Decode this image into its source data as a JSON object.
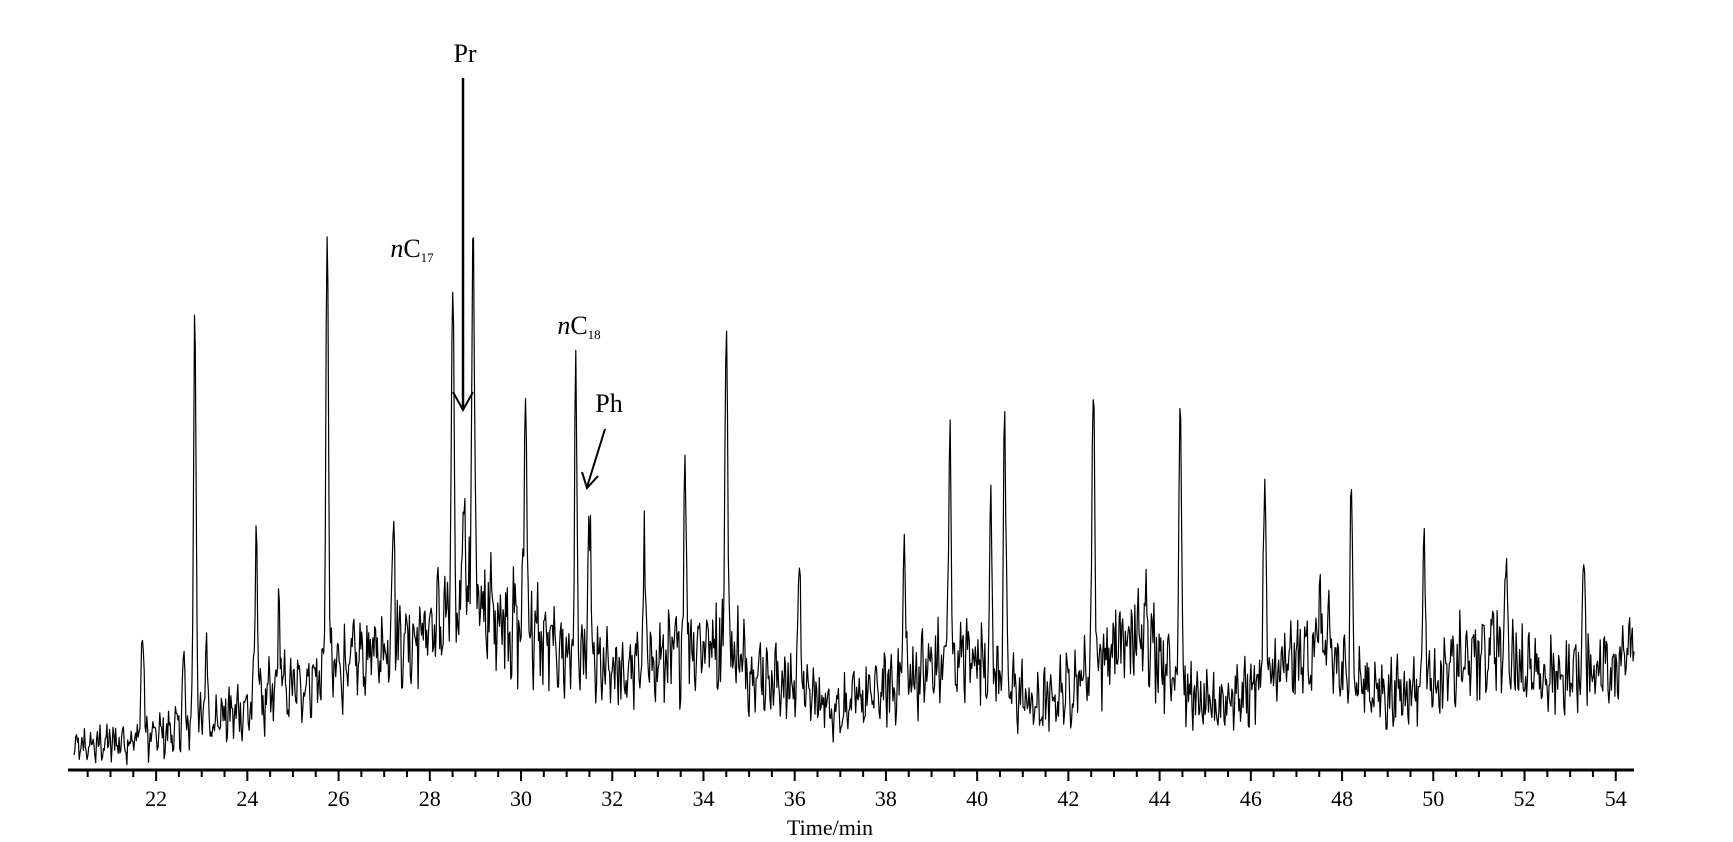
{
  "chart_data": {
    "type": "line",
    "xlabel": "Time/min",
    "xlim": [
      20.2,
      54.4
    ],
    "ylim": [
      0,
      100
    ],
    "x_ticks": [
      22,
      24,
      26,
      28,
      30,
      32,
      34,
      36,
      38,
      40,
      42,
      44,
      46,
      48,
      50,
      52,
      54
    ],
    "minor_tick_step": 0.5,
    "grid": false,
    "legend": "none",
    "line_color": "#000000",
    "baseline": [
      [
        20.2,
        3
      ],
      [
        21.0,
        4
      ],
      [
        22.0,
        5
      ],
      [
        23.0,
        7
      ],
      [
        24.0,
        9
      ],
      [
        25.0,
        12
      ],
      [
        26.0,
        15
      ],
      [
        27.0,
        18
      ],
      [
        28.0,
        21
      ],
      [
        28.8,
        24
      ],
      [
        29.5,
        23
      ],
      [
        30.0,
        21
      ],
      [
        31.0,
        17
      ],
      [
        32.0,
        14
      ],
      [
        33.0,
        16
      ],
      [
        34.0,
        19
      ],
      [
        34.6,
        18
      ],
      [
        35.0,
        15
      ],
      [
        36.0,
        12
      ],
      [
        37.0,
        9
      ],
      [
        38.0,
        12
      ],
      [
        39.0,
        15
      ],
      [
        40.0,
        17
      ],
      [
        40.6,
        13
      ],
      [
        41.3,
        9
      ],
      [
        42.0,
        12
      ],
      [
        43.0,
        18
      ],
      [
        43.7,
        20
      ],
      [
        44.5,
        12
      ],
      [
        45.0,
        9
      ],
      [
        46.0,
        12
      ],
      [
        47.0,
        16
      ],
      [
        47.6,
        19
      ],
      [
        48.0,
        14
      ],
      [
        49.0,
        11
      ],
      [
        50.0,
        13
      ],
      [
        51.0,
        17
      ],
      [
        51.7,
        17
      ],
      [
        52.3,
        13
      ],
      [
        53.0,
        14
      ],
      [
        54.0,
        16
      ],
      [
        54.4,
        18
      ]
    ],
    "peaks": [
      [
        21.7,
        22
      ],
      [
        22.6,
        16
      ],
      [
        22.85,
        69
      ],
      [
        23.1,
        18
      ],
      [
        24.2,
        36
      ],
      [
        24.7,
        25
      ],
      [
        25.75,
        80
      ],
      [
        27.2,
        39
      ],
      [
        28.5,
        67
      ],
      [
        28.75,
        46
      ],
      [
        28.95,
        86
      ],
      [
        30.1,
        58
      ],
      [
        31.2,
        55
      ],
      [
        31.5,
        38
      ],
      [
        32.7,
        31
      ],
      [
        33.6,
        46
      ],
      [
        34.5,
        68
      ],
      [
        36.1,
        32
      ],
      [
        38.4,
        33
      ],
      [
        39.4,
        50
      ],
      [
        40.3,
        36
      ],
      [
        40.6,
        51
      ],
      [
        42.55,
        60
      ],
      [
        43.7,
        28
      ],
      [
        44.45,
        58
      ],
      [
        46.3,
        45
      ],
      [
        47.5,
        25
      ],
      [
        48.2,
        42
      ],
      [
        49.8,
        36
      ],
      [
        51.3,
        24
      ],
      [
        51.6,
        31
      ],
      [
        53.3,
        30
      ]
    ],
    "annotations": [
      {
        "prefix": "n",
        "label": "C",
        "sub": "17",
        "x": 28.5
      },
      {
        "prefix": "",
        "label": "Pr",
        "sub": "",
        "x": 28.75
      },
      {
        "prefix": "n",
        "label": "C",
        "sub": "18",
        "x": 31.2
      },
      {
        "prefix": "",
        "label": "Ph",
        "sub": "",
        "x": 31.5
      }
    ]
  }
}
